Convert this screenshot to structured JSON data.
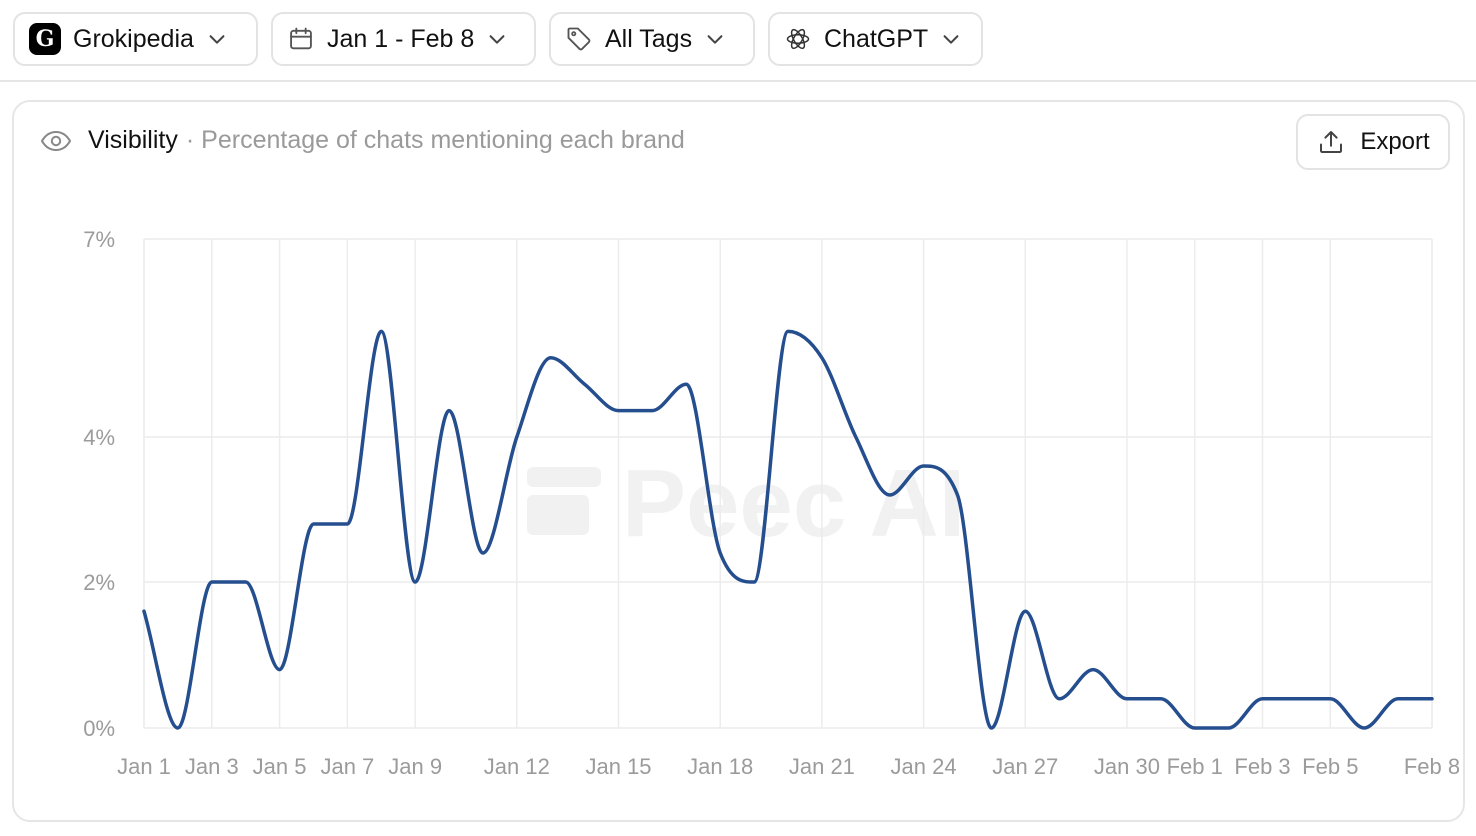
{
  "filters": {
    "brand": {
      "label": "Grokipedia",
      "icon": "grokipedia-logo",
      "glyph": "G"
    },
    "date": {
      "label": "Jan 1 - Feb 8",
      "icon": "calendar-icon"
    },
    "tags": {
      "label": "All Tags",
      "icon": "tag-icon"
    },
    "model": {
      "label": "ChatGPT",
      "icon": "openai-icon"
    }
  },
  "card": {
    "title": "Visibility",
    "separator": "·",
    "subtitle": "Percentage of chats mentioning each brand",
    "export_label": "Export"
  },
  "watermark": "Peec AI",
  "colors": {
    "line": "#254e8f",
    "grid": "#ececec",
    "tick": "#9b9b9b",
    "watermark": "#f1f1f1"
  },
  "chart_data": {
    "type": "line",
    "title": "Visibility",
    "subtitle": "Percentage of chats mentioning each brand",
    "xlabel": "",
    "ylabel": "",
    "grid": true,
    "y_ticks": [
      0,
      2,
      4,
      7
    ],
    "y_tick_labels": [
      "0%",
      "2%",
      "4%",
      "7%"
    ],
    "ylim": [
      0,
      7
    ],
    "x_tick_labels": [
      "Jan 1",
      "Jan 3",
      "Jan 5",
      "Jan 7",
      "Jan 9",
      "Jan 12",
      "Jan 15",
      "Jan 18",
      "Jan 21",
      "Jan 24",
      "Jan 27",
      "Jan 30",
      "Feb 1",
      "Feb 3",
      "Feb 5",
      "Feb 8"
    ],
    "categories": [
      "Jan 1",
      "Jan 2",
      "Jan 3",
      "Jan 4",
      "Jan 5",
      "Jan 6",
      "Jan 7",
      "Jan 8",
      "Jan 9",
      "Jan 10",
      "Jan 11",
      "Jan 12",
      "Jan 13",
      "Jan 14",
      "Jan 15",
      "Jan 16",
      "Jan 17",
      "Jan 18",
      "Jan 19",
      "Jan 20",
      "Jan 21",
      "Jan 22",
      "Jan 23",
      "Jan 24",
      "Jan 25",
      "Jan 26",
      "Jan 27",
      "Jan 28",
      "Jan 29",
      "Jan 30",
      "Jan 31",
      "Feb 1",
      "Feb 2",
      "Feb 3",
      "Feb 4",
      "Feb 5",
      "Feb 6",
      "Feb 7",
      "Feb 8"
    ],
    "series": [
      {
        "values": [
          1.6,
          0,
          2,
          2,
          0.8,
          2.8,
          2.8,
          5.6,
          2,
          4.4,
          2.4,
          4,
          5.2,
          4.8,
          4.4,
          4.4,
          4.8,
          2.4,
          2,
          5.6,
          5.2,
          4,
          3.2,
          3.6,
          3.2,
          0,
          1.6,
          0.4,
          0.8,
          0.4,
          0.4,
          0,
          0,
          0.4,
          0.4,
          0.4,
          0,
          0.4,
          0.4
        ]
      }
    ]
  }
}
